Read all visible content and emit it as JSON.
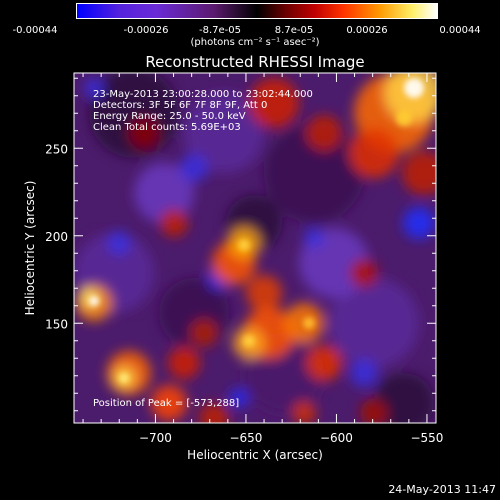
{
  "colorbar": {
    "tick_labels": [
      "-0.00044",
      "-0.00026",
      "-8.7e-05",
      "8.7e-05",
      "0.00026",
      "0.00044"
    ],
    "tick_values": [
      -0.00044,
      -0.00026,
      -8.7e-05,
      8.7e-05,
      0.00026,
      0.00044
    ],
    "range": [
      -0.00044,
      0.00044
    ],
    "units_label": "(photons cm⁻² s⁻¹ asec⁻²)",
    "colors": [
      "#0000ff",
      "#6a2bd6",
      "#5b1a6e",
      "#000000",
      "#8b0000",
      "#ff3300",
      "#ff9900",
      "#ffee66",
      "#ffffff"
    ]
  },
  "chart_data": {
    "type": "heatmap",
    "title": "Reconstructed RHESSI Image",
    "xlabel": "Heliocentric X (arcsec)",
    "ylabel": "Heliocentric Y (arcsec)",
    "xlim": [
      -745,
      -545
    ],
    "ylim": [
      93,
      293
    ],
    "x_ticks": [
      -700,
      -650,
      -600,
      -550
    ],
    "y_ticks": [
      150,
      200,
      250
    ],
    "x_tick_labels": [
      "−700",
      "−650",
      "−600",
      "−550"
    ],
    "y_tick_labels": [
      "150",
      "200",
      "250"
    ],
    "annotations": [
      "23-May-2013 23:00:28.000 to 23:02:44.000",
      "Detectors: 3F 5F 6F 7F 8F 9F, Att 0",
      "Energy Range: 25.0 - 50.0 keV",
      "Clean     Total counts: 5.69E+03"
    ],
    "peak_label": "Position of Peak = [-573,288]",
    "peak": [
      -573,
      288
    ]
  },
  "footer": {
    "timestamp": "24-May-2013 11:47"
  }
}
